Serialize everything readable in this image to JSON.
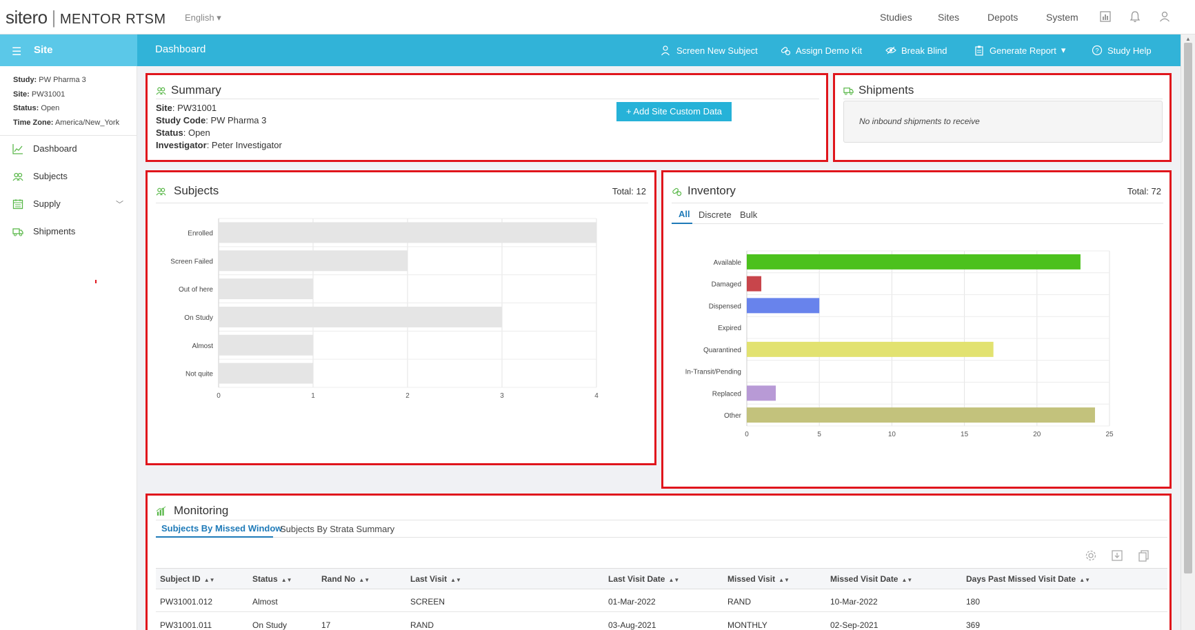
{
  "app": {
    "brand": "sitero",
    "product": "MENTOR RTSM",
    "language": "English"
  },
  "top_nav": [
    "Studies",
    "Sites",
    "Depots",
    "System"
  ],
  "side_header": "Site",
  "page_title": "Dashboard",
  "actions": {
    "screen": "Screen New Subject",
    "demo": "Assign Demo Kit",
    "blind": "Break Blind",
    "report": "Generate Report",
    "help": "Study Help"
  },
  "site_info": {
    "study_label": "Study:",
    "study": "PW Pharma 3",
    "site_label": "Site:",
    "site": "PW31001",
    "status_label": "Status:",
    "status": "Open",
    "tz_label": "Time Zone:",
    "tz": "America/New_York"
  },
  "sidebar": {
    "items": [
      {
        "label": "Dashboard",
        "icon": "chart-line-icon"
      },
      {
        "label": "Subjects",
        "icon": "users-icon"
      },
      {
        "label": "Supply",
        "icon": "calendar-icon"
      },
      {
        "label": "Shipments",
        "icon": "truck-icon"
      }
    ]
  },
  "summary": {
    "title": "Summary",
    "site_label": "Site",
    "site": ": PW31001",
    "code_label": "Study Code",
    "code": ": PW Pharma 3",
    "status_label": "Status",
    "status": ": Open",
    "inv_label": "Investigator",
    "inv": ": Peter Investigator",
    "add_button": "+ Add Site Custom Data"
  },
  "shipments": {
    "title": "Shipments",
    "empty": "No inbound shipments to receive"
  },
  "subjects": {
    "title": "Subjects",
    "total": "Total: 12"
  },
  "inventory": {
    "title": "Inventory",
    "total": "Total: 72",
    "tabs": [
      "All",
      "Discrete",
      "Bulk"
    ]
  },
  "chart_data": [
    {
      "type": "bar",
      "orientation": "horizontal",
      "categories": [
        "Enrolled",
        "Screen Failed",
        "Out of here",
        "On Study",
        "Almost",
        "Not quite"
      ],
      "values": [
        4,
        2,
        1,
        3,
        1,
        1
      ],
      "xlim": [
        0,
        4
      ],
      "xticks": [
        0,
        1,
        2,
        3,
        4
      ],
      "grid": true,
      "color": "#e5e5e5"
    },
    {
      "type": "bar",
      "orientation": "horizontal",
      "categories": [
        "Available",
        "Damaged",
        "Dispensed",
        "Expired",
        "Quarantined",
        "In-Transit/Pending",
        "Replaced",
        "Other"
      ],
      "values": [
        23,
        1,
        5,
        0,
        17,
        0,
        2,
        24
      ],
      "colors": [
        "#4cc11d",
        "#c8454b",
        "#6883ec",
        "#cccccc",
        "#e2e270",
        "#cccccc",
        "#b89ad6",
        "#c3c27c"
      ],
      "xlim": [
        0,
        25
      ],
      "xticks": [
        0,
        5,
        10,
        15,
        20,
        25
      ],
      "grid": true
    }
  ],
  "monitoring": {
    "title": "Monitoring",
    "tabs": [
      "Subjects By Missed Window",
      "Subjects By Strata Summary"
    ],
    "columns": [
      "Subject ID",
      "Status",
      "Rand No",
      "Last Visit",
      "Last Visit Date",
      "Missed Visit",
      "Missed Visit Date",
      "Days Past Missed Visit Date"
    ],
    "rows": [
      [
        "PW31001.012",
        "Almost",
        "",
        "SCREEN",
        "01-Mar-2022",
        "RAND",
        "10-Mar-2022",
        "180"
      ],
      [
        "PW31001.011",
        "On Study",
        "17",
        "RAND",
        "03-Aug-2021",
        "MONTHLY",
        "02-Sep-2021",
        "369"
      ]
    ]
  }
}
